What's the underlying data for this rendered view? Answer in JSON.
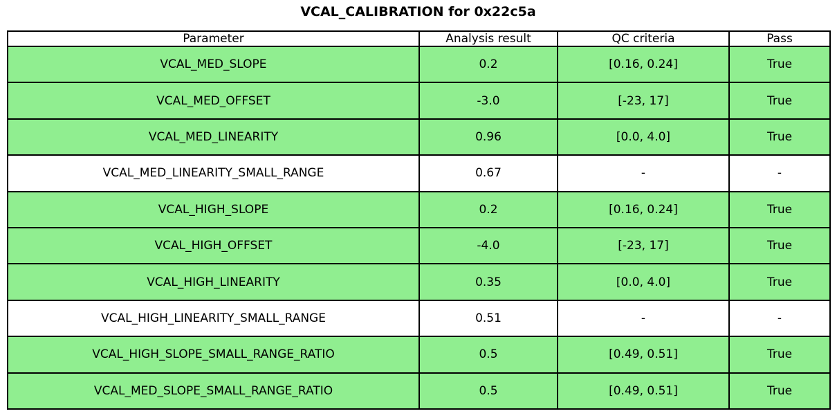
{
  "colors": {
    "pass_row": "#90EE90",
    "neutral_row": "#ffffff",
    "border": "#000000",
    "text": "#000000",
    "background": "#ffffff"
  },
  "chart_data": {
    "type": "table",
    "title": "VCAL_CALIBRATION for 0x22c5a",
    "columns": [
      "Parameter",
      "Analysis result",
      "QC criteria",
      "Pass"
    ],
    "rows": [
      {
        "parameter": "VCAL_MED_SLOPE",
        "result": "0.2",
        "criteria": "[0.16, 0.24]",
        "pass": "True",
        "highlight": true
      },
      {
        "parameter": "VCAL_MED_OFFSET",
        "result": "-3.0",
        "criteria": "[-23, 17]",
        "pass": "True",
        "highlight": true
      },
      {
        "parameter": "VCAL_MED_LINEARITY",
        "result": "0.96",
        "criteria": "[0.0, 4.0]",
        "pass": "True",
        "highlight": true
      },
      {
        "parameter": "VCAL_MED_LINEARITY_SMALL_RANGE",
        "result": "0.67",
        "criteria": "-",
        "pass": "-",
        "highlight": false
      },
      {
        "parameter": "VCAL_HIGH_SLOPE",
        "result": "0.2",
        "criteria": "[0.16, 0.24]",
        "pass": "True",
        "highlight": true
      },
      {
        "parameter": "VCAL_HIGH_OFFSET",
        "result": "-4.0",
        "criteria": "[-23, 17]",
        "pass": "True",
        "highlight": true
      },
      {
        "parameter": "VCAL_HIGH_LINEARITY",
        "result": "0.35",
        "criteria": "[0.0, 4.0]",
        "pass": "True",
        "highlight": true
      },
      {
        "parameter": "VCAL_HIGH_LINEARITY_SMALL_RANGE",
        "result": "0.51",
        "criteria": "-",
        "pass": "-",
        "highlight": false
      },
      {
        "parameter": "VCAL_HIGH_SLOPE_SMALL_RANGE_RATIO",
        "result": "0.5",
        "criteria": "[0.49, 0.51]",
        "pass": "True",
        "highlight": true
      },
      {
        "parameter": "VCAL_MED_SLOPE_SMALL_RANGE_RATIO",
        "result": "0.5",
        "criteria": "[0.49, 0.51]",
        "pass": "True",
        "highlight": true
      }
    ],
    "layout": {
      "legend": "none",
      "grid": "table-borders",
      "highlighted_row_meaning": "QC passed",
      "highlight_color": "#90EE90"
    }
  }
}
